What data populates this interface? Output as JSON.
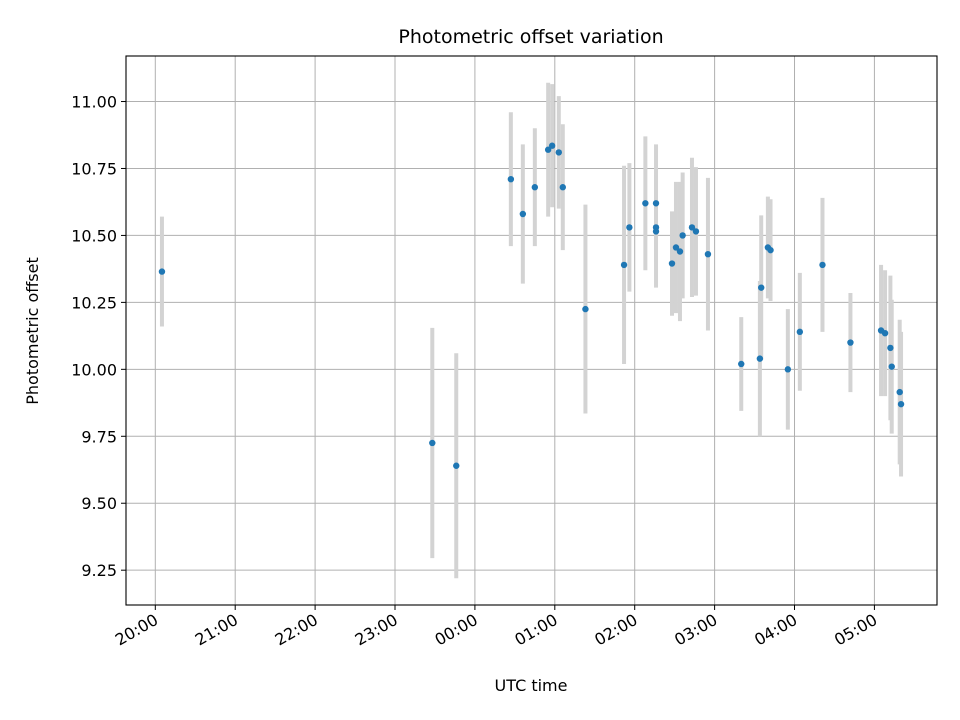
{
  "chart_data": {
    "type": "scatter",
    "title": "Photometric offset variation",
    "xlabel": "UTC time",
    "ylabel": "Photometric offset",
    "grid": true,
    "x_ticks": [
      "20:00",
      "21:00",
      "22:00",
      "23:00",
      "00:00",
      "01:00",
      "02:00",
      "03:00",
      "04:00",
      "05:00"
    ],
    "y_ticks": [
      "9.25",
      "9.50",
      "9.75",
      "10.00",
      "10.25",
      "10.50",
      "10.75",
      "11.00"
    ],
    "xlim": [
      "19:38",
      "05:47"
    ],
    "ylim": [
      9.12,
      11.17
    ],
    "marker_color": "#1f77b4",
    "errorbar_color": "#d3d3d3",
    "series": [
      {
        "points": [
          {
            "x": "20:05",
            "y": 10.365,
            "yerr": 0.205
          },
          {
            "x": "23:28",
            "y": 9.725,
            "yerr": 0.43
          },
          {
            "x": "23:46",
            "y": 9.64,
            "yerr": 0.42
          },
          {
            "x": "00:27",
            "y": 10.71,
            "yerr": 0.25
          },
          {
            "x": "00:36",
            "y": 10.58,
            "yerr": 0.26
          },
          {
            "x": "00:45",
            "y": 10.68,
            "yerr": 0.22
          },
          {
            "x": "00:55",
            "y": 10.82,
            "yerr": 0.25
          },
          {
            "x": "00:58",
            "y": 10.835,
            "yerr": 0.23
          },
          {
            "x": "01:03",
            "y": 10.81,
            "yerr": 0.21
          },
          {
            "x": "01:06",
            "y": 10.68,
            "yerr": 0.235
          },
          {
            "x": "01:23",
            "y": 10.225,
            "yerr": 0.39
          },
          {
            "x": "01:52",
            "y": 10.39,
            "yerr": 0.37
          },
          {
            "x": "01:56",
            "y": 10.53,
            "yerr": 0.24
          },
          {
            "x": "02:08",
            "y": 10.62,
            "yerr": 0.25
          },
          {
            "x": "02:16",
            "y": 10.62,
            "yerr": 0.22
          },
          {
            "x": "02:16",
            "y": 10.53,
            "yerr": 0.13
          },
          {
            "x": "02:16",
            "y": 10.515,
            "yerr": 0.21
          },
          {
            "x": "02:28",
            "y": 10.395,
            "yerr": 0.195
          },
          {
            "x": "02:31",
            "y": 10.455,
            "yerr": 0.245
          },
          {
            "x": "02:34",
            "y": 10.44,
            "yerr": 0.26
          },
          {
            "x": "02:36",
            "y": 10.5,
            "yerr": 0.235
          },
          {
            "x": "02:43",
            "y": 10.53,
            "yerr": 0.26
          },
          {
            "x": "02:46",
            "y": 10.515,
            "yerr": 0.24
          },
          {
            "x": "02:55",
            "y": 10.43,
            "yerr": 0.285
          },
          {
            "x": "03:20",
            "y": 10.02,
            "yerr": 0.175
          },
          {
            "x": "03:34",
            "y": 10.04,
            "yerr": 0.29
          },
          {
            "x": "03:35",
            "y": 10.305,
            "yerr": 0.27
          },
          {
            "x": "03:40",
            "y": 10.455,
            "yerr": 0.19
          },
          {
            "x": "03:42",
            "y": 10.445,
            "yerr": 0.19
          },
          {
            "x": "03:55",
            "y": 10.0,
            "yerr": 0.225
          },
          {
            "x": "04:04",
            "y": 10.14,
            "yerr": 0.22
          },
          {
            "x": "04:21",
            "y": 10.39,
            "yerr": 0.25
          },
          {
            "x": "04:42",
            "y": 10.1,
            "yerr": 0.185
          },
          {
            "x": "05:05",
            "y": 10.145,
            "yerr": 0.245
          },
          {
            "x": "05:08",
            "y": 10.135,
            "yerr": 0.235
          },
          {
            "x": "05:12",
            "y": 10.08,
            "yerr": 0.27
          },
          {
            "x": "05:13",
            "y": 10.01,
            "yerr": 0.25
          },
          {
            "x": "05:19",
            "y": 9.915,
            "yerr": 0.27
          },
          {
            "x": "05:20",
            "y": 9.87,
            "yerr": 0.27
          }
        ]
      }
    ]
  }
}
